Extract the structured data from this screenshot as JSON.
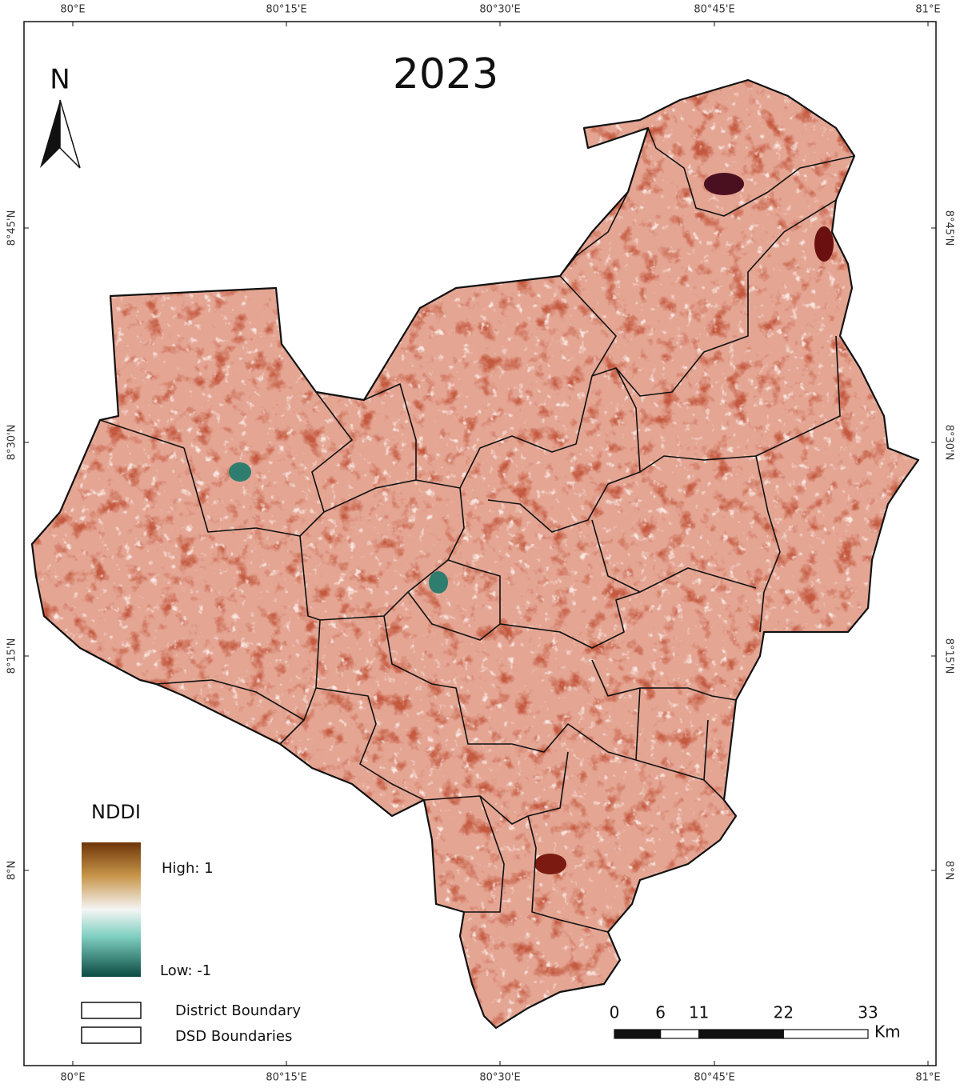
{
  "title": "2023",
  "north_arrow": "N",
  "graticule": {
    "lon_labels": [
      "80°E",
      "80°15'E",
      "80°30'E",
      "80°45'E",
      "81°E"
    ],
    "lat_labels": [
      "8°45'N",
      "8°30'N",
      "8°15'N",
      "8°N"
    ]
  },
  "legend": {
    "title": "NDDI",
    "high": "High: 1",
    "low": "Low: -1",
    "items": [
      "District Boundary",
      "DSD Boundaries"
    ]
  },
  "scale_bar": {
    "ticks": [
      0,
      6,
      11,
      22,
      33
    ],
    "unit": "Km"
  }
}
